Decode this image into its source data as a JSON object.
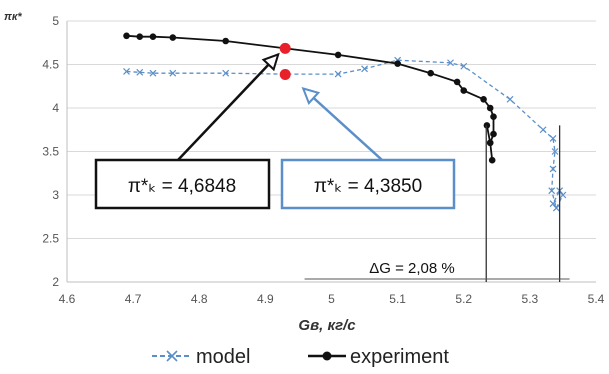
{
  "chart_data": {
    "type": "line",
    "xlabel": "Gв, кг/с",
    "ylabel": "πк*",
    "xlim": [
      4.6,
      5.4
    ],
    "ylim": [
      2,
      5
    ],
    "x_ticks": [
      "4.6",
      "4.7",
      "4.8",
      "4.9",
      "5",
      "5.1",
      "5.2",
      "5.3",
      "5.4"
    ],
    "y_ticks": [
      "2",
      "2.5",
      "3",
      "3.5",
      "4",
      "4.5",
      "5"
    ],
    "grid": "horizontal",
    "legend_position": "bottom",
    "series": [
      {
        "name": "model",
        "color": "#5b8fc9",
        "marker": "x",
        "line_style": "dashed",
        "x": [
          4.69,
          4.71,
          4.73,
          4.76,
          4.84,
          4.93,
          5.01,
          5.05,
          5.1,
          5.18,
          5.2,
          5.27,
          5.32,
          5.335,
          5.338,
          5.335,
          5.333,
          5.34,
          5.35,
          5.345,
          5.335
        ],
        "y": [
          4.42,
          4.41,
          4.4,
          4.4,
          4.4,
          4.39,
          4.39,
          4.45,
          4.55,
          4.52,
          4.48,
          4.1,
          3.75,
          3.65,
          3.5,
          3.3,
          3.05,
          2.85,
          3.0,
          3.05,
          2.9
        ]
      },
      {
        "name": "experiment",
        "color": "#111111",
        "marker": "circle",
        "line_style": "solid",
        "x": [
          4.69,
          4.71,
          4.73,
          4.76,
          4.84,
          5.01,
          5.1,
          5.15,
          5.19,
          5.2,
          5.23,
          5.24,
          5.245,
          5.245,
          5.24,
          5.235,
          5.24,
          5.243
        ],
        "y": [
          4.83,
          4.82,
          4.82,
          4.81,
          4.77,
          4.61,
          4.51,
          4.4,
          4.3,
          4.2,
          4.1,
          4.0,
          3.9,
          3.7,
          3.6,
          3.8,
          3.6,
          3.4
        ]
      }
    ],
    "highlighted_points": [
      {
        "x": 4.93,
        "y": 4.6848,
        "color": "#e8202a"
      },
      {
        "x": 4.93,
        "y": 4.385,
        "color": "#e8202a"
      }
    ],
    "annotations": [
      {
        "text": "π*ₖ = 4,6848",
        "border_color": "#111111"
      },
      {
        "text": "π*ₖ = 4,3850",
        "border_color": "#5b8fc9"
      },
      {
        "text": "ΔG = 2,08 %"
      }
    ],
    "delta_lines_x": [
      5.234,
      5.345
    ]
  }
}
